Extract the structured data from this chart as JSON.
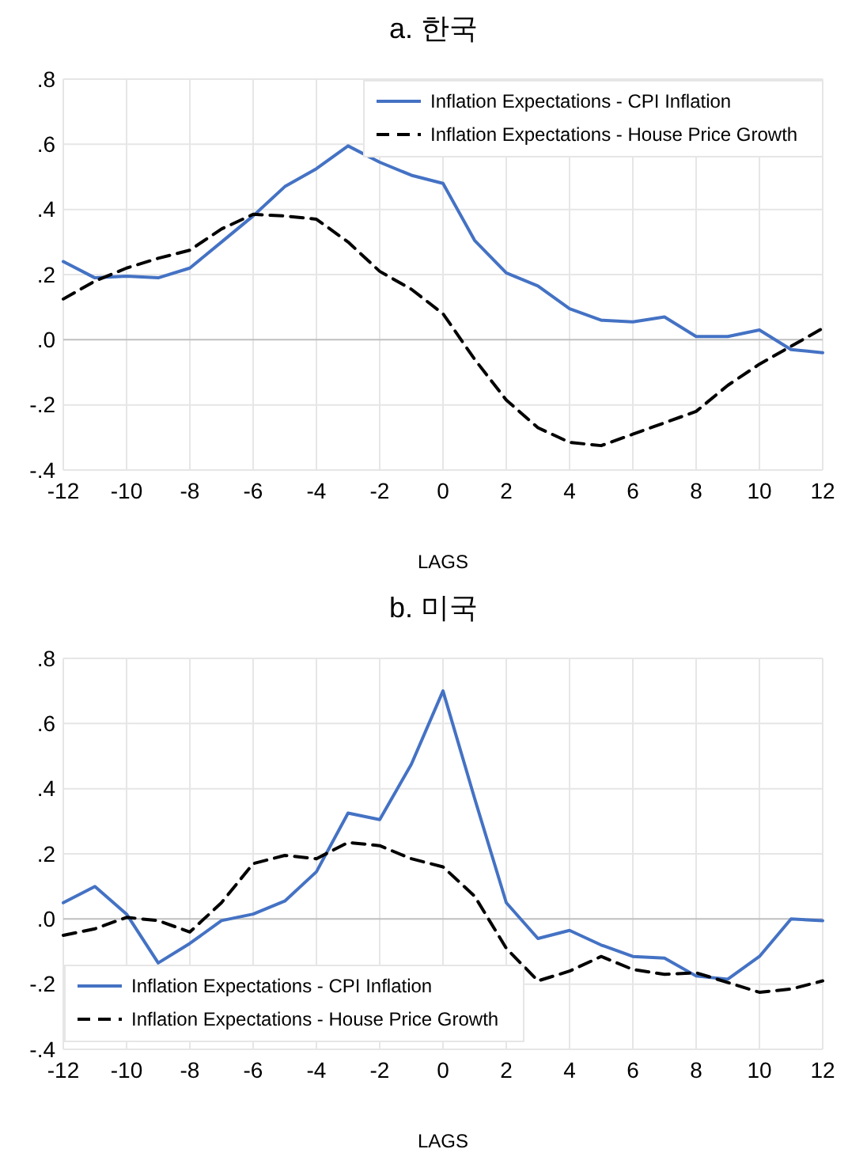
{
  "chart_data": [
    {
      "type": "line",
      "title": "a. 한국",
      "xlabel": "LAGS",
      "x": [
        -12,
        -11,
        -10,
        -9,
        -8,
        -7,
        -6,
        -5,
        -4,
        -3,
        -2,
        -1,
        0,
        1,
        2,
        3,
        4,
        5,
        6,
        7,
        8,
        9,
        10,
        11,
        12
      ],
      "xlim": [
        -12,
        12
      ],
      "xticks": [
        -12,
        -10,
        -8,
        -6,
        -4,
        -2,
        0,
        2,
        4,
        6,
        8,
        10,
        12
      ],
      "ylim": [
        -0.4,
        0.8
      ],
      "yticks": [
        {
          "value": -0.4,
          "label": "-.4"
        },
        {
          "value": -0.2,
          "label": "-.2"
        },
        {
          "value": 0,
          "label": ".0"
        },
        {
          "value": 0.2,
          "label": ".2"
        },
        {
          "value": 0.4,
          "label": ".4"
        },
        {
          "value": 0.6,
          "label": ".6"
        },
        {
          "value": 0.8,
          "label": ".8"
        }
      ],
      "grid": true,
      "legend": "top right",
      "marker": "none",
      "series": [
        {
          "name": "Inflation Expectations - CPI Inflation",
          "color": "#4472c4",
          "line_style": "solid",
          "values": [
            0.24,
            0.19,
            0.195,
            0.19,
            0.22,
            0.3,
            0.38,
            0.47,
            0.525,
            0.595,
            0.545,
            0.505,
            0.48,
            0.305,
            0.205,
            0.165,
            0.095,
            0.06,
            0.055,
            0.07,
            0.01,
            0.01,
            0.03,
            -0.03,
            -0.04
          ]
        },
        {
          "name": "Inflation Expectations - House Price Growth",
          "color": "#000000",
          "line_style": "dashed",
          "values": [
            0.125,
            0.18,
            0.22,
            0.25,
            0.275,
            0.34,
            0.385,
            0.38,
            0.37,
            0.3,
            0.21,
            0.155,
            0.08,
            -0.06,
            -0.185,
            -0.27,
            -0.315,
            -0.325,
            -0.29,
            -0.255,
            -0.22,
            -0.14,
            -0.075,
            -0.02,
            0.035
          ]
        }
      ]
    },
    {
      "type": "line",
      "title": "b. 미국",
      "xlabel": "LAGS",
      "x": [
        -12,
        -11,
        -10,
        -9,
        -8,
        -7,
        -6,
        -5,
        -4,
        -3,
        -2,
        -1,
        0,
        1,
        2,
        3,
        4,
        5,
        6,
        7,
        8,
        9,
        10,
        11,
        12
      ],
      "xlim": [
        -12,
        12
      ],
      "xticks": [
        -12,
        -10,
        -8,
        -6,
        -4,
        -2,
        0,
        2,
        4,
        6,
        8,
        10,
        12
      ],
      "ylim": [
        -0.4,
        0.8
      ],
      "yticks": [
        {
          "value": -0.4,
          "label": "-.4"
        },
        {
          "value": -0.2,
          "label": "-.2"
        },
        {
          "value": 0,
          "label": ".0"
        },
        {
          "value": 0.2,
          "label": ".2"
        },
        {
          "value": 0.4,
          "label": ".4"
        },
        {
          "value": 0.6,
          "label": ".6"
        },
        {
          "value": 0.8,
          "label": ".8"
        }
      ],
      "grid": true,
      "legend": "bottom left",
      "marker": "none",
      "series": [
        {
          "name": "Inflation Expectations - CPI Inflation",
          "color": "#4472c4",
          "line_style": "solid",
          "values": [
            0.05,
            0.1,
            0.015,
            -0.135,
            -0.075,
            -0.005,
            0.015,
            0.055,
            0.145,
            0.325,
            0.305,
            0.475,
            0.7,
            0.37,
            0.05,
            -0.06,
            -0.035,
            -0.08,
            -0.115,
            -0.12,
            -0.175,
            -0.185,
            -0.115,
            0,
            -0.005
          ]
        },
        {
          "name": "Inflation Expectations - House Price Growth",
          "color": "#000000",
          "line_style": "dashed",
          "values": [
            -0.05,
            -0.03,
            0.005,
            -0.005,
            -0.04,
            0.05,
            0.17,
            0.195,
            0.185,
            0.235,
            0.225,
            0.185,
            0.16,
            0.07,
            -0.09,
            -0.19,
            -0.16,
            -0.115,
            -0.155,
            -0.17,
            -0.165,
            -0.195,
            -0.225,
            -0.215,
            -0.19
          ]
        }
      ]
    }
  ]
}
